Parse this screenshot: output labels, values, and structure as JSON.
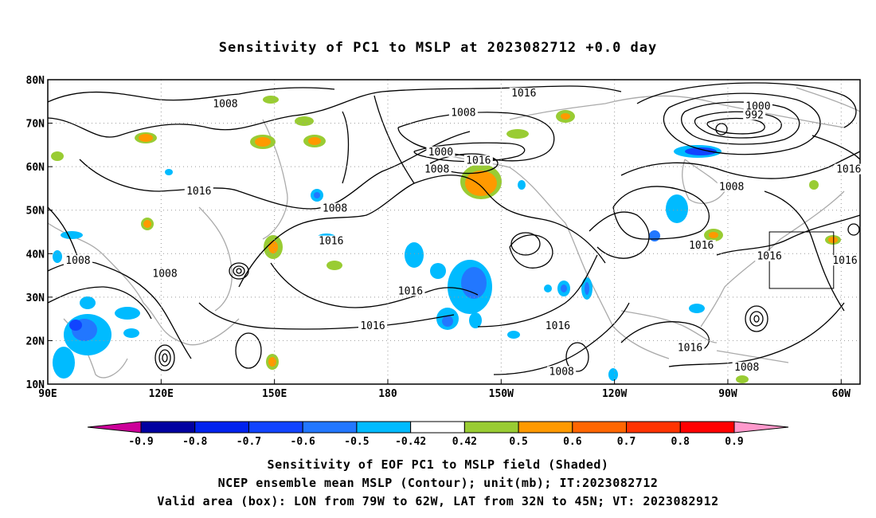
{
  "title": "Sensitivity of PC1 to MSLP at 2023082712 +0.0 day",
  "map": {
    "lon_range": [
      90,
      305
    ],
    "lat_range": [
      10,
      80
    ],
    "x_ticks": [
      {
        "lon": 90,
        "label": "90E"
      },
      {
        "lon": 120,
        "label": "120E"
      },
      {
        "lon": 150,
        "label": "150E"
      },
      {
        "lon": 180,
        "label": "180"
      },
      {
        "lon": 210,
        "label": "150W"
      },
      {
        "lon": 240,
        "label": "120W"
      },
      {
        "lon": 270,
        "label": "90W"
      },
      {
        "lon": 300,
        "label": "60W"
      }
    ],
    "y_ticks": [
      {
        "lat": 10,
        "label": "10N"
      },
      {
        "lat": 20,
        "label": "20N"
      },
      {
        "lat": 30,
        "label": "30N"
      },
      {
        "lat": 40,
        "label": "40N"
      },
      {
        "lat": 50,
        "label": "50N"
      },
      {
        "lat": 60,
        "label": "60N"
      },
      {
        "lat": 70,
        "label": "70N"
      },
      {
        "lat": 80,
        "label": "80N"
      }
    ],
    "grid": "dotted",
    "valid_box": {
      "lon": [
        281,
        298
      ],
      "lat": [
        32,
        45
      ]
    },
    "contour_labels": [
      {
        "text": "1008",
        "lon": 137,
        "lat": 74
      },
      {
        "text": "1016",
        "lon": 216,
        "lat": 76.5
      },
      {
        "text": "1008",
        "lon": 200,
        "lat": 72
      },
      {
        "text": "1000",
        "lon": 278,
        "lat": 73.5
      },
      {
        "text": "992",
        "lon": 277,
        "lat": 71.5
      },
      {
        "text": "1000",
        "lon": 194,
        "lat": 63
      },
      {
        "text": "1008",
        "lon": 193,
        "lat": 59
      },
      {
        "text": "1016",
        "lon": 204,
        "lat": 61
      },
      {
        "text": "1016",
        "lon": 302,
        "lat": 59
      },
      {
        "text": "1008",
        "lon": 271,
        "lat": 55
      },
      {
        "text": "1016",
        "lon": 130,
        "lat": 54
      },
      {
        "text": "1008",
        "lon": 166,
        "lat": 50
      },
      {
        "text": "1016",
        "lon": 165,
        "lat": 42.5
      },
      {
        "text": "1016",
        "lon": 263,
        "lat": 41.5
      },
      {
        "text": "1016",
        "lon": 281,
        "lat": 39
      },
      {
        "text": "1016",
        "lon": 301,
        "lat": 38
      },
      {
        "text": "1008",
        "lon": 98,
        "lat": 38
      },
      {
        "text": "1008",
        "lon": 121,
        "lat": 35
      },
      {
        "text": "1016",
        "lon": 186,
        "lat": 31
      },
      {
        "text": "1016",
        "lon": 176,
        "lat": 23
      },
      {
        "text": "1016",
        "lon": 225,
        "lat": 23
      },
      {
        "text": "1016",
        "lon": 260,
        "lat": 18
      },
      {
        "text": "1008",
        "lon": 226,
        "lat": 12.5
      },
      {
        "text": "1008",
        "lon": 275,
        "lat": 13.5
      }
    ]
  },
  "colorbar": {
    "labels": [
      "-0.9",
      "-0.8",
      "-0.7",
      "-0.6",
      "-0.5",
      "-0.42",
      "0.42",
      "0.5",
      "0.6",
      "0.7",
      "0.8",
      "0.9"
    ],
    "colors": [
      "#0000a0",
      "#0022ee",
      "#1144ff",
      "#2277ff",
      "#00bbff",
      "#ffffff",
      "#99cc33",
      "#ff9900",
      "#ff6600",
      "#ff3300",
      "#ff0000"
    ],
    "low_end_color": "#cc0099",
    "high_end_color": "#ff99cc"
  },
  "captions": {
    "line1": "Sensitivity of EOF PC1 to MSLP field (Shaded)",
    "line2": "NCEP ensemble mean MSLP (Contour); unit(mb); IT:2023082712",
    "line3": "Valid area (box): LON from 79W to 62W, LAT from 32N to 45N; VT: 2023082912"
  },
  "colors": {
    "coast": "#aaaaaa",
    "contour": "#000000",
    "grid": "#999999"
  }
}
